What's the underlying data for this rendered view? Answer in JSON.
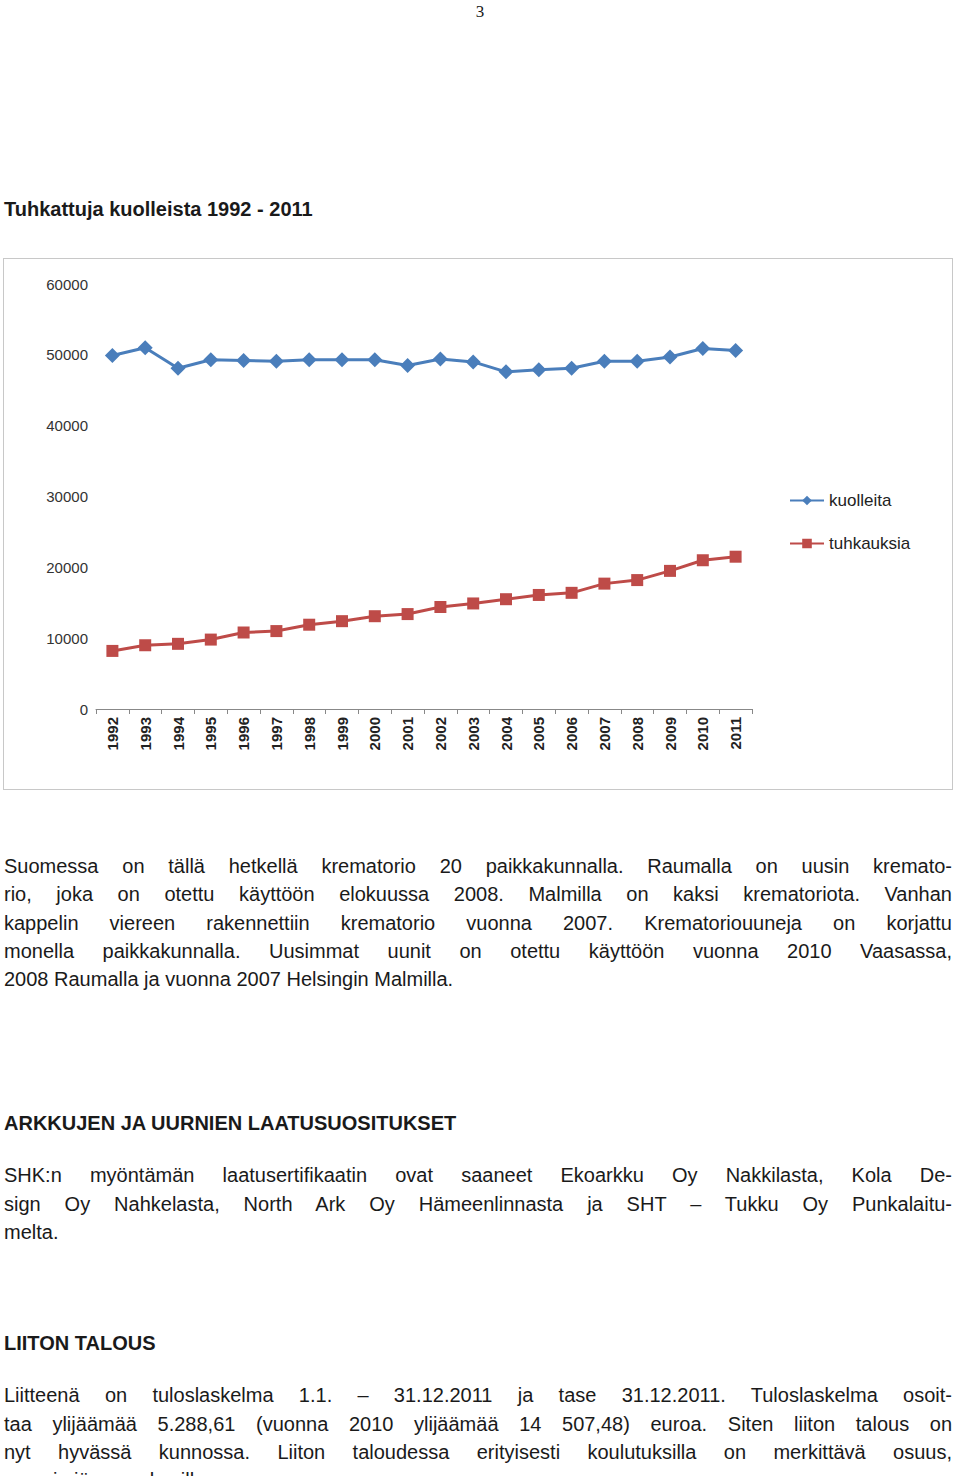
{
  "page_number": "3",
  "title": "Tuhkattuja kuolleista 1992 - 2011",
  "chart_data": {
    "type": "line",
    "categories": [
      "1992",
      "1993",
      "1994",
      "1995",
      "1996",
      "1997",
      "1998",
      "1999",
      "2000",
      "2001",
      "2002",
      "2003",
      "2004",
      "2005",
      "2006",
      "2007",
      "2008",
      "2009",
      "2010",
      "2011"
    ],
    "series": [
      {
        "name": "kuolleita",
        "color": "#4a7ebb",
        "marker": "diamond",
        "values": [
          49900,
          51000,
          48100,
          49300,
          49200,
          49100,
          49300,
          49300,
          49300,
          48500,
          49400,
          49000,
          47600,
          47900,
          48100,
          49100,
          49100,
          49700,
          50900,
          50600
        ]
      },
      {
        "name": "tuhkauksia",
        "color": "#be4b48",
        "marker": "square",
        "values": [
          8200,
          9000,
          9200,
          9800,
          10800,
          11000,
          11900,
          12400,
          13100,
          13400,
          14400,
          14900,
          15500,
          16100,
          16400,
          17700,
          18200,
          19500,
          21000,
          21500
        ]
      }
    ],
    "ylim": [
      0,
      60000
    ],
    "yticks": [
      0,
      10000,
      20000,
      30000,
      40000,
      50000,
      60000
    ],
    "grid": false,
    "legend": "right"
  },
  "intro": {
    "lines": [
      "Suomessa on tällä hetkellä krematorio 20 paikkakunnalla. Raumalla on uusin kremato-",
      "rio, joka on otettu käyttöön elokuussa 2008. Malmilla on kaksi krematoriota. Vanhan",
      "kappelin viereen rakennettiin krematorio vuonna 2007. Krematoriouuneja on korjattu",
      "monella paikkakunnalla. Uusimmat uunit on otettu käyttöön vuonna 2010 Vaasassa,",
      "2008 Raumalla ja vuonna 2007 Helsingin Malmilla."
    ]
  },
  "sections": [
    {
      "heading": "ARKKUJEN JA UURNIEN LAATUSUOSITUKSET",
      "lines": [
        "SHK:n myöntämän laatusertifikaatin ovat saaneet Ekoarkku Oy Nakkilasta, Kola De-",
        "sign Oy Nahkelasta, North Ark Oy Hämeenlinnasta ja  SHT – Tukku Oy Punkalaitu-",
        "melta."
      ]
    },
    {
      "heading": "LIITON TALOUS",
      "lines": [
        "Liitteenä on tuloslaskelma 1.1. – 31.12.2011 ja tase 31.12.2011. Tuloslaskelma osoit-",
        "taa ylijäämää 5.288,61 (vuonna 2010 ylijäämää 14 507,48) euroa. Siten liiton talous on",
        "nyt hyvässä kunnossa. Liiton taloudessa erityisesti koulutuksilla on merkittävä osuus,",
        "samoin jäsenmaksuilla."
      ]
    }
  ]
}
